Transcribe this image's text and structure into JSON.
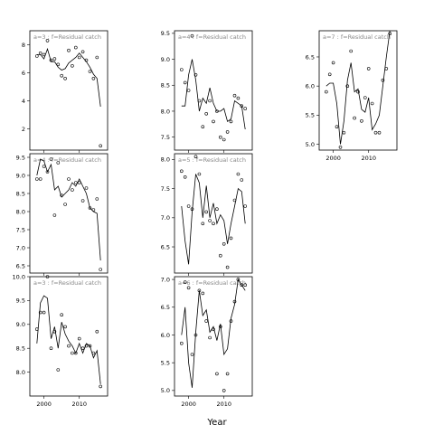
{
  "chart_data": {
    "type": "scatter",
    "xlabel": "Year",
    "ylabel": "",
    "panels": [
      {
        "label": "a=3  :  f=Residual catch",
        "ylim": [
          0.5,
          9
        ],
        "yticks": [
          2,
          4,
          6,
          8
        ],
        "points": [
          [
            1998,
            7.2
          ],
          [
            1999,
            7.4
          ],
          [
            2000,
            7.3
          ],
          [
            2001,
            8.3
          ],
          [
            2002,
            6.9
          ],
          [
            2003,
            7.0
          ],
          [
            2004,
            6.6
          ],
          [
            2005,
            5.8
          ],
          [
            2006,
            5.6
          ],
          [
            2007,
            7.6
          ],
          [
            2008,
            6.5
          ],
          [
            2009,
            7.8
          ],
          [
            2010,
            7.1
          ],
          [
            2011,
            7.5
          ],
          [
            2012,
            6.9
          ],
          [
            2013,
            6.1
          ],
          [
            2014,
            5.6
          ],
          [
            2015,
            7.1
          ],
          [
            2016,
            0.8
          ]
        ],
        "line": [
          [
            1998,
            7.3
          ],
          [
            1999,
            7.3
          ],
          [
            2000,
            7.0
          ],
          [
            2001,
            7.7
          ],
          [
            2002,
            6.8
          ],
          [
            2003,
            6.8
          ],
          [
            2004,
            6.4
          ],
          [
            2005,
            6.2
          ],
          [
            2006,
            6.3
          ],
          [
            2007,
            6.7
          ],
          [
            2008,
            6.9
          ],
          [
            2009,
            7.1
          ],
          [
            2010,
            7.4
          ],
          [
            2011,
            7.1
          ],
          [
            2012,
            6.8
          ],
          [
            2013,
            6.4
          ],
          [
            2014,
            5.9
          ],
          [
            2015,
            5.6
          ],
          [
            2016,
            3.6
          ]
        ]
      },
      {
        "label": "a=4  :  f=Residual catch",
        "ylim": [
          7.25,
          9.55
        ],
        "yticks": [
          7.5,
          8.0,
          8.5,
          9.0,
          9.5
        ],
        "points": [
          [
            1998,
            8.8
          ],
          [
            1999,
            8.55
          ],
          [
            2000,
            8.4
          ],
          [
            2001,
            9.45
          ],
          [
            2002,
            8.7
          ],
          [
            2003,
            8.2
          ],
          [
            2004,
            7.7
          ],
          [
            2005,
            7.95
          ],
          [
            2006,
            8.2
          ],
          [
            2007,
            7.8
          ],
          [
            2008,
            8.0
          ],
          [
            2009,
            7.5
          ],
          [
            2010,
            7.45
          ],
          [
            2011,
            7.6
          ],
          [
            2012,
            7.8
          ],
          [
            2013,
            8.3
          ],
          [
            2014,
            8.25
          ],
          [
            2015,
            8.1
          ],
          [
            2016,
            8.05
          ]
        ],
        "line": [
          [
            1998,
            8.1
          ],
          [
            1999,
            8.1
          ],
          [
            2000,
            8.7
          ],
          [
            2001,
            9.0
          ],
          [
            2002,
            8.6
          ],
          [
            2003,
            8.0
          ],
          [
            2004,
            8.25
          ],
          [
            2005,
            8.15
          ],
          [
            2006,
            8.45
          ],
          [
            2007,
            8.15
          ],
          [
            2008,
            8.0
          ],
          [
            2009,
            8.0
          ],
          [
            2010,
            8.05
          ],
          [
            2011,
            7.8
          ],
          [
            2012,
            7.85
          ],
          [
            2013,
            8.2
          ],
          [
            2014,
            8.15
          ],
          [
            2015,
            8.1
          ],
          [
            2016,
            7.65
          ]
        ]
      },
      {
        "label": "a=7  :  f=Residual catch",
        "ylim": [
          4.9,
          6.95
        ],
        "yticks": [
          5.0,
          5.5,
          6.0,
          6.5
        ],
        "points": [
          [
            1998,
            5.9
          ],
          [
            1999,
            6.2
          ],
          [
            2000,
            6.4
          ],
          [
            2001,
            5.3
          ],
          [
            2002,
            4.95
          ],
          [
            2003,
            5.2
          ],
          [
            2004,
            6.0
          ],
          [
            2005,
            6.6
          ],
          [
            2006,
            5.45
          ],
          [
            2007,
            5.9
          ],
          [
            2008,
            5.4
          ],
          [
            2009,
            5.8
          ],
          [
            2010,
            6.3
          ],
          [
            2011,
            5.7
          ],
          [
            2012,
            5.2
          ],
          [
            2013,
            5.2
          ],
          [
            2014,
            6.1
          ],
          [
            2015,
            6.3
          ],
          [
            2016,
            6.9
          ]
        ],
        "line": [
          [
            1998,
            6.0
          ],
          [
            1999,
            6.05
          ],
          [
            2000,
            6.05
          ],
          [
            2001,
            5.7
          ],
          [
            2002,
            5.0
          ],
          [
            2003,
            5.4
          ],
          [
            2004,
            6.1
          ],
          [
            2005,
            6.4
          ],
          [
            2006,
            5.9
          ],
          [
            2007,
            5.95
          ],
          [
            2008,
            5.6
          ],
          [
            2009,
            5.55
          ],
          [
            2010,
            5.8
          ],
          [
            2011,
            5.25
          ],
          [
            2012,
            5.35
          ],
          [
            2013,
            5.5
          ],
          [
            2014,
            6.0
          ],
          [
            2015,
            6.5
          ],
          [
            2016,
            6.95
          ]
        ]
      },
      {
        "label": "a=4  :  f=Residual catch",
        "ylim": [
          6.3,
          9.6
        ],
        "yticks": [
          6.5,
          7.0,
          7.5,
          8.0,
          8.5,
          9.0,
          9.5
        ],
        "points": [
          [
            1998,
            8.9
          ],
          [
            1999,
            8.9
          ],
          [
            2000,
            9.25
          ],
          [
            2001,
            9.1
          ],
          [
            2002,
            9.45
          ],
          [
            2003,
            7.9
          ],
          [
            2004,
            9.35
          ],
          [
            2005,
            8.45
          ],
          [
            2006,
            8.2
          ],
          [
            2007,
            8.9
          ],
          [
            2008,
            8.6
          ],
          [
            2009,
            8.8
          ],
          [
            2010,
            8.8
          ],
          [
            2011,
            8.3
          ],
          [
            2012,
            8.65
          ],
          [
            2013,
            8.1
          ],
          [
            2014,
            8.05
          ],
          [
            2015,
            8.35
          ],
          [
            2016,
            6.4
          ]
        ],
        "line": [
          [
            1998,
            9.0
          ],
          [
            1999,
            9.45
          ],
          [
            2000,
            9.4
          ],
          [
            2001,
            9.1
          ],
          [
            2002,
            9.3
          ],
          [
            2003,
            8.6
          ],
          [
            2004,
            8.7
          ],
          [
            2005,
            8.4
          ],
          [
            2006,
            8.5
          ],
          [
            2007,
            8.6
          ],
          [
            2008,
            8.8
          ],
          [
            2009,
            8.7
          ],
          [
            2010,
            8.9
          ],
          [
            2011,
            8.7
          ],
          [
            2012,
            8.5
          ],
          [
            2013,
            8.1
          ],
          [
            2014,
            8.0
          ],
          [
            2015,
            7.95
          ],
          [
            2016,
            6.65
          ]
        ]
      },
      {
        "label": "a=5  :  f=Residual catch",
        "ylim": [
          6.05,
          8.1
        ],
        "yticks": [
          6.5,
          7.0,
          7.5,
          8.0
        ],
        "points": [
          [
            1998,
            7.8
          ],
          [
            1999,
            7.7
          ],
          [
            2000,
            7.2
          ],
          [
            2001,
            7.15
          ],
          [
            2002,
            8.05
          ],
          [
            2003,
            7.75
          ],
          [
            2004,
            6.9
          ],
          [
            2005,
            7.1
          ],
          [
            2006,
            6.95
          ],
          [
            2007,
            6.9
          ],
          [
            2008,
            7.15
          ],
          [
            2009,
            6.35
          ],
          [
            2010,
            6.55
          ],
          [
            2011,
            6.15
          ],
          [
            2012,
            6.65
          ],
          [
            2013,
            7.3
          ],
          [
            2014,
            7.75
          ],
          [
            2015,
            7.65
          ],
          [
            2016,
            7.2
          ]
        ],
        "line": [
          [
            1998,
            7.2
          ],
          [
            1999,
            6.6
          ],
          [
            2000,
            6.2
          ],
          [
            2001,
            7.1
          ],
          [
            2002,
            7.75
          ],
          [
            2003,
            7.6
          ],
          [
            2004,
            7.0
          ],
          [
            2005,
            7.55
          ],
          [
            2006,
            7.0
          ],
          [
            2007,
            7.25
          ],
          [
            2008,
            6.9
          ],
          [
            2009,
            7.05
          ],
          [
            2010,
            6.95
          ],
          [
            2011,
            6.55
          ],
          [
            2012,
            6.9
          ],
          [
            2013,
            7.2
          ],
          [
            2014,
            7.5
          ],
          [
            2015,
            7.45
          ],
          [
            2016,
            6.9
          ]
        ]
      },
      {
        "label": "a=3  :  f=Residual catch",
        "ylim": [
          7.5,
          10.0
        ],
        "yticks": [
          8.0,
          8.5,
          9.0,
          9.5,
          10.0
        ],
        "points": [
          [
            1998,
            8.9
          ],
          [
            1999,
            9.25
          ],
          [
            2000,
            9.25
          ],
          [
            2001,
            10.0
          ],
          [
            2002,
            8.5
          ],
          [
            2003,
            8.85
          ],
          [
            2004,
            8.05
          ],
          [
            2005,
            9.2
          ],
          [
            2006,
            8.95
          ],
          [
            2007,
            8.55
          ],
          [
            2008,
            8.4
          ],
          [
            2009,
            8.4
          ],
          [
            2010,
            8.7
          ],
          [
            2011,
            8.5
          ],
          [
            2012,
            8.55
          ],
          [
            2013,
            8.55
          ],
          [
            2014,
            8.4
          ],
          [
            2015,
            8.85
          ],
          [
            2016,
            7.7
          ]
        ],
        "line": [
          [
            1998,
            8.6
          ],
          [
            1999,
            9.45
          ],
          [
            2000,
            9.6
          ],
          [
            2001,
            9.55
          ],
          [
            2002,
            8.7
          ],
          [
            2003,
            8.95
          ],
          [
            2004,
            8.5
          ],
          [
            2005,
            9.05
          ],
          [
            2006,
            8.8
          ],
          [
            2007,
            8.65
          ],
          [
            2008,
            8.55
          ],
          [
            2009,
            8.4
          ],
          [
            2010,
            8.6
          ],
          [
            2011,
            8.4
          ],
          [
            2012,
            8.6
          ],
          [
            2013,
            8.55
          ],
          [
            2014,
            8.3
          ],
          [
            2015,
            8.45
          ],
          [
            2016,
            7.75
          ]
        ]
      },
      {
        "label": "a=6  :  f=Residual catch",
        "ylim": [
          4.9,
          7.05
        ],
        "yticks": [
          5.0,
          5.5,
          6.0,
          6.5,
          7.0
        ],
        "points": [
          [
            1998,
            5.85
          ],
          [
            1999,
            6.95
          ],
          [
            2000,
            6.85
          ],
          [
            2001,
            5.65
          ],
          [
            2002,
            6.0
          ],
          [
            2003,
            6.8
          ],
          [
            2004,
            6.75
          ],
          [
            2005,
            6.25
          ],
          [
            2006,
            5.95
          ],
          [
            2007,
            6.1
          ],
          [
            2008,
            5.3
          ],
          [
            2009,
            6.15
          ],
          [
            2010,
            5.0
          ],
          [
            2011,
            5.3
          ],
          [
            2012,
            6.25
          ],
          [
            2013,
            6.6
          ],
          [
            2014,
            7.0
          ],
          [
            2015,
            6.9
          ],
          [
            2016,
            6.9
          ]
        ],
        "line": [
          [
            1998,
            6.0
          ],
          [
            1999,
            6.5
          ],
          [
            2000,
            5.5
          ],
          [
            2001,
            5.05
          ],
          [
            2002,
            6.05
          ],
          [
            2003,
            6.8
          ],
          [
            2004,
            6.35
          ],
          [
            2005,
            6.45
          ],
          [
            2006,
            6.05
          ],
          [
            2007,
            6.15
          ],
          [
            2008,
            5.9
          ],
          [
            2009,
            6.2
          ],
          [
            2010,
            5.65
          ],
          [
            2011,
            5.75
          ],
          [
            2012,
            6.3
          ],
          [
            2013,
            6.55
          ],
          [
            2014,
            7.0
          ],
          [
            2015,
            6.9
          ],
          [
            2016,
            6.8
          ]
        ]
      }
    ],
    "xlim": [
      1996,
      2018
    ],
    "xticks": [
      2000,
      2010
    ]
  }
}
